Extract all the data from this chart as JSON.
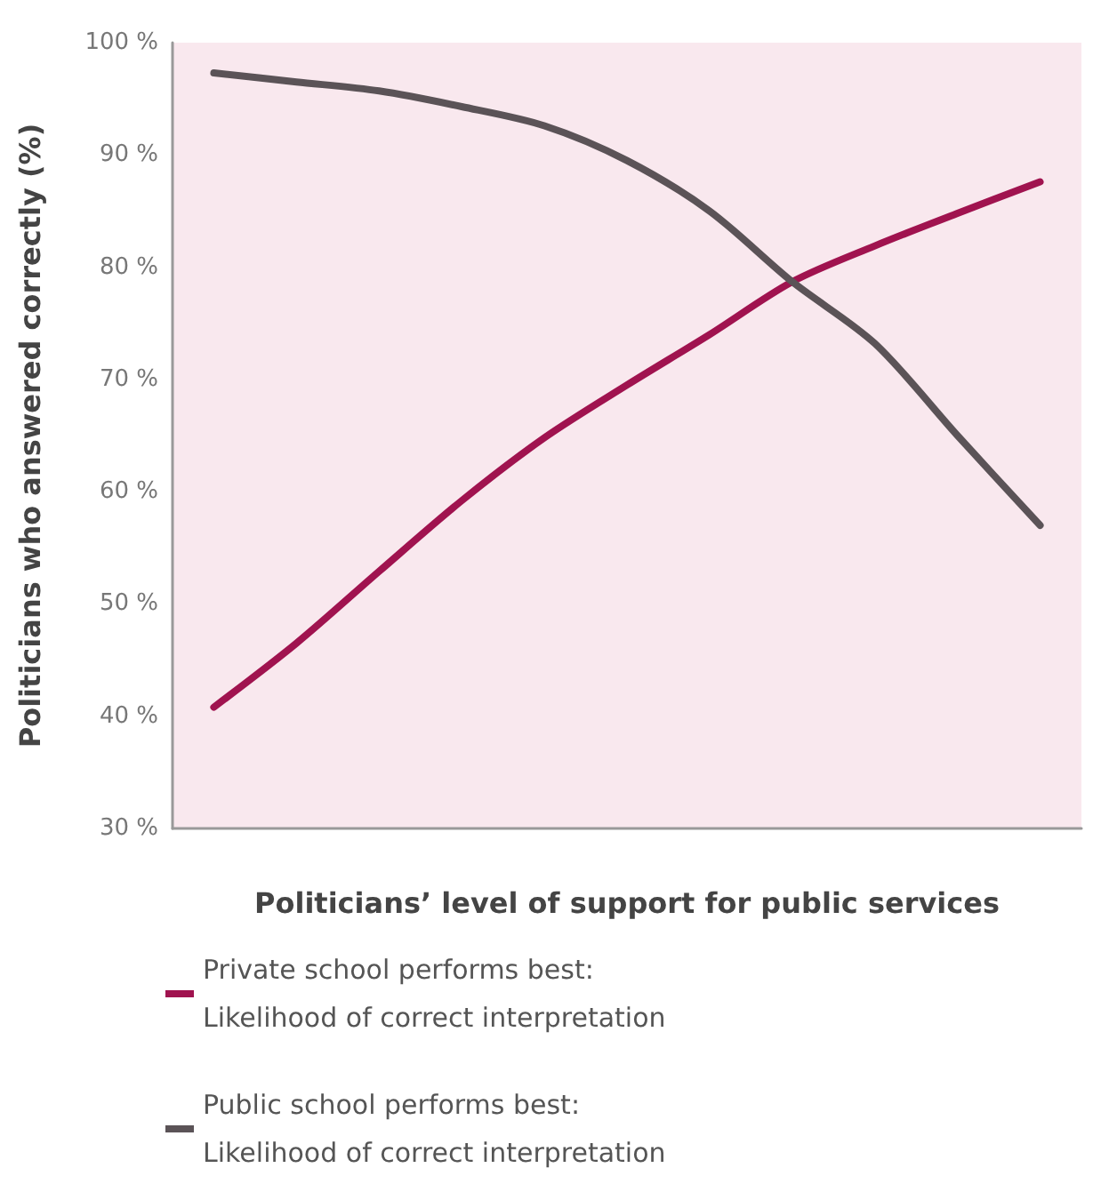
{
  "chart_data": {
    "type": "line",
    "xlabel": "Politicians’ level of support for public services",
    "ylabel": "Politicians who answered correctly (%)",
    "categories": [
      null,
      null,
      null,
      null,
      null,
      null,
      null,
      null,
      null,
      null,
      null
    ],
    "series": [
      {
        "name": "Private school performs best: Likelihood of correct interpretation",
        "color": "#a0134f",
        "values": [
          40.8,
          46.5,
          52.9,
          59.2,
          64.8,
          69.5,
          74.0,
          78.7,
          81.9,
          84.8,
          87.6
        ]
      },
      {
        "name": "Public school performs best: Likelihood of correct interpretation",
        "color": "#5b5357",
        "values": [
          97.3,
          96.5,
          95.7,
          94.3,
          92.6,
          89.5,
          85.0,
          78.7,
          73.2,
          65.0,
          57.0
        ]
      }
    ],
    "ylim": [
      30,
      100
    ],
    "yticks": [
      {
        "value": 30,
        "label": "30 %"
      },
      {
        "value": 40,
        "label": "40 %"
      },
      {
        "value": 50,
        "label": "50 %"
      },
      {
        "value": 60,
        "label": "60 %"
      },
      {
        "value": 70,
        "label": "70 %"
      },
      {
        "value": 80,
        "label": "80 %"
      },
      {
        "value": 90,
        "label": "90 %"
      },
      {
        "value": 100,
        "label": "100 %"
      }
    ],
    "grid": false,
    "legend": "bottom",
    "marker": "none",
    "line_style": "solid"
  }
}
